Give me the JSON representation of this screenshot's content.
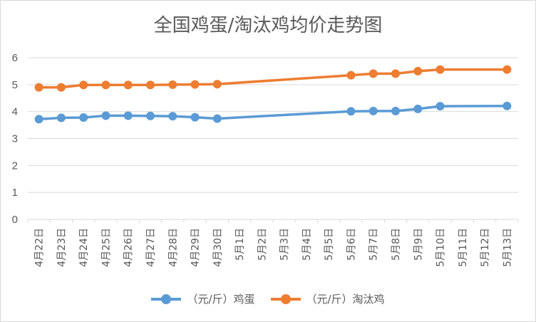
{
  "chart_data": {
    "type": "line",
    "title": "全国鸡蛋/淘汰鸡均价走势图",
    "xlabel": "",
    "ylabel": "",
    "categories": [
      "4月22日",
      "4月23日",
      "4月24日",
      "4月25日",
      "4月26日",
      "4月27日",
      "4月28日",
      "4月29日",
      "4月30日",
      "5月1日",
      "5月2日",
      "5月3日",
      "5月4日",
      "5月5日",
      "5月6日",
      "5月7日",
      "5月8日",
      "5月9日",
      "5月10日",
      "5月11日",
      "5月12日",
      "5月13日"
    ],
    "ylim": [
      0,
      6
    ],
    "yticks": [
      "0",
      "1",
      "2",
      "3",
      "4",
      "5",
      "6"
    ],
    "grid": true,
    "legend_position": "bottom",
    "series": [
      {
        "name": "（元/斤）鸡蛋",
        "color": "#5B9BD5",
        "values": [
          3.72,
          3.77,
          3.78,
          3.85,
          3.85,
          3.84,
          3.83,
          3.79,
          3.74,
          null,
          null,
          null,
          null,
          null,
          4.01,
          4.02,
          4.02,
          4.1,
          4.2,
          null,
          null,
          4.21
        ]
      },
      {
        "name": "（元/斤）淘汰鸡",
        "color": "#ED7D31",
        "values": [
          4.9,
          4.9,
          4.99,
          4.99,
          4.99,
          4.99,
          5.0,
          5.01,
          5.02,
          null,
          null,
          null,
          null,
          null,
          5.35,
          5.41,
          5.41,
          5.5,
          5.56,
          null,
          null,
          5.56
        ]
      }
    ]
  }
}
